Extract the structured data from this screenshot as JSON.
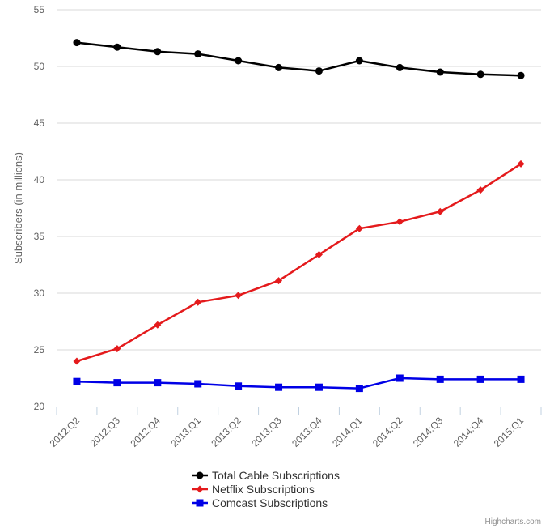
{
  "chart_data": {
    "type": "line",
    "title": "",
    "xlabel": "",
    "ylabel": "Subscribers (in millions)",
    "ylim": [
      20,
      55
    ],
    "yticks": [
      20,
      25,
      30,
      35,
      40,
      45,
      50,
      55
    ],
    "grid": "horizontal",
    "legend_position": "bottom-center",
    "categories": [
      "2012:Q2",
      "2012:Q3",
      "2012:Q4",
      "2013:Q1",
      "2013:Q2",
      "2013:Q3",
      "2013:Q4",
      "2014:Q1",
      "2014:Q2",
      "2014:Q3",
      "2014:Q4",
      "2015:Q1"
    ],
    "series": [
      {
        "name": "Total Cable Subscriptions",
        "color": "#000000",
        "marker": "circle",
        "values": [
          52.1,
          51.7,
          51.3,
          51.1,
          50.5,
          49.9,
          49.6,
          50.5,
          49.9,
          49.5,
          49.3,
          49.2
        ]
      },
      {
        "name": "Netflix Subscriptions",
        "color": "#e41a1c",
        "marker": "diamond",
        "values": [
          24.0,
          25.1,
          27.2,
          29.2,
          29.8,
          31.1,
          33.4,
          35.7,
          36.3,
          37.2,
          39.1,
          41.4
        ]
      },
      {
        "name": "Comcast Subscriptions",
        "color": "#0000e6",
        "marker": "square",
        "values": [
          22.2,
          22.1,
          22.1,
          22.0,
          21.8,
          21.7,
          21.7,
          21.6,
          22.5,
          22.4,
          22.4,
          22.4
        ]
      }
    ]
  },
  "credits": "Highcharts.com"
}
